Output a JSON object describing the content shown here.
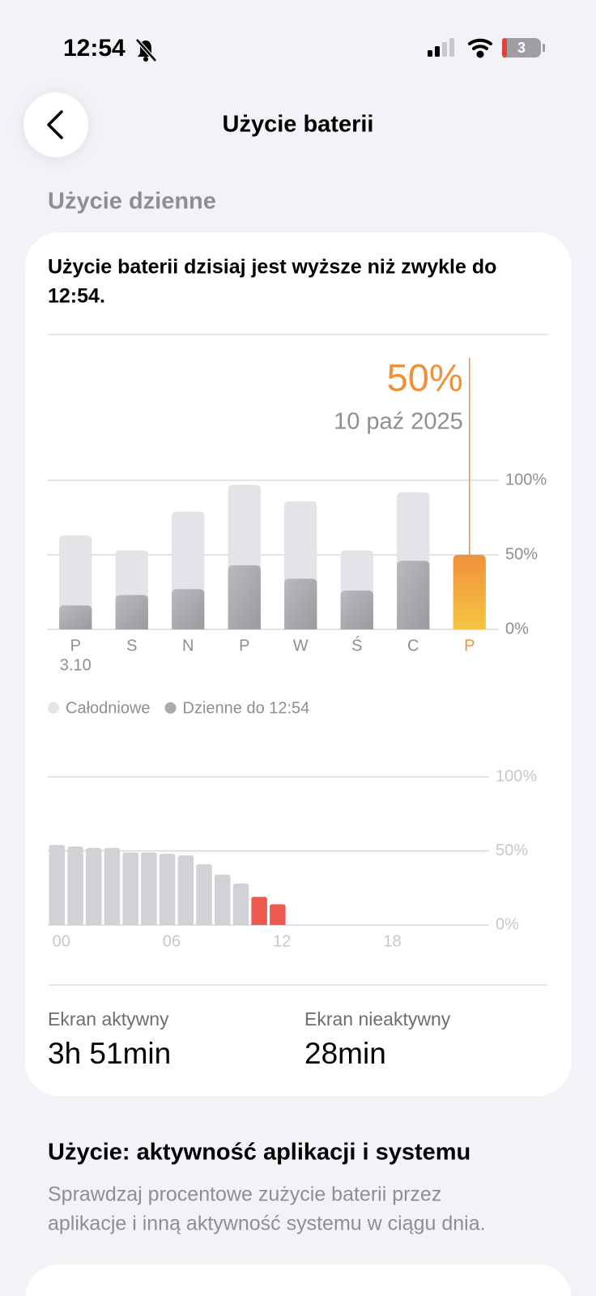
{
  "status_bar": {
    "time": "12:54",
    "battery": "3"
  },
  "header": {
    "title": "Użycie baterii"
  },
  "section_title": "Użycie dzienne",
  "card": {
    "message": [
      "Użycie baterii dzisiaj jest wyższe niż zwykle do",
      "12:54."
    ],
    "charts": [
      {
        "type": "bar",
        "selected": {
          "value": 50,
          "label": "50%",
          "date": "10 paź 2025",
          "index": 7,
          "color": "#f0913a"
        },
        "categories": [
          "P",
          "S",
          "N",
          "P",
          "W",
          "Ś",
          "C",
          "P"
        ],
        "first_date": "3.10",
        "series": [
          {
            "name": "Całodniowe",
            "color": "#e3e3e8",
            "values": [
              63,
              53,
              79,
              97,
              86,
              53,
              92,
              null
            ]
          },
          {
            "name": "Dzienne do 12:54",
            "color": "#a9a9ae",
            "values": [
              16,
              23,
              27,
              43,
              34,
              26,
              46,
              50
            ]
          }
        ],
        "ylim": [
          0,
          100
        ],
        "yticks": [
          {
            "value": 0,
            "label": "0%"
          },
          {
            "value": 50,
            "label": "50%"
          },
          {
            "value": 100,
            "label": "100%"
          }
        ],
        "grid": true,
        "legend": "bottom-left"
      },
      {
        "type": "bar",
        "categories": [
          "00",
          null,
          null,
          null,
          null,
          null,
          "06",
          null,
          null,
          null,
          null,
          null,
          "12",
          null,
          null,
          null,
          null,
          null,
          "18",
          null,
          null,
          null,
          null,
          null
        ],
        "values": [
          54,
          53,
          52,
          52,
          49,
          49,
          48,
          47,
          41,
          34,
          28,
          19,
          14,
          null,
          null,
          null,
          null,
          null,
          null,
          null,
          null,
          null,
          null,
          null
        ],
        "color": "#d1d1d6",
        "highlight_indices": [
          11,
          12
        ],
        "highlight_color": "#ee5a4f",
        "ylim": [
          0,
          100
        ],
        "yticks": [
          {
            "value": 0,
            "label": "0%"
          },
          {
            "value": 50,
            "label": "50%"
          },
          {
            "value": 100,
            "label": "100%"
          }
        ],
        "grid": true
      }
    ],
    "stats": [
      {
        "label": "Ekran aktywny",
        "value": "3h 51min"
      },
      {
        "label": "Ekran nieaktywny",
        "value": "28min"
      }
    ]
  },
  "activity": {
    "title": "Użycie: aktywność aplikacji i systemu",
    "description": [
      "Sprawdzaj procentowe zużycie baterii przez",
      "aplikacje i inną aktywność systemu w ciągu dnia."
    ]
  }
}
